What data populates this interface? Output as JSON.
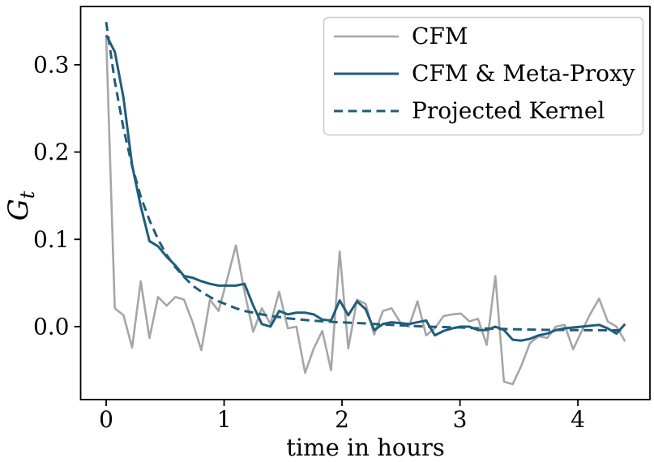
{
  "figure": {
    "background": "#ffffff",
    "spine_color": "#000000",
    "legend_border_color": "#cccccc",
    "legend_background": "#ffffff"
  },
  "chart_data": {
    "type": "line",
    "title": "",
    "xlabel": "time in hours",
    "ylabel": "G_t",
    "ylabel_main": "G",
    "ylabel_sub": "t",
    "xlim": [
      -0.2166,
      4.611
    ],
    "ylim": [
      -0.0836,
      0.3668
    ],
    "xticks": [
      0,
      1,
      2,
      3,
      4
    ],
    "xtick_labels": [
      "0",
      "1",
      "2",
      "3",
      "4"
    ],
    "yticks": [
      0.0,
      0.1,
      0.2,
      0.3
    ],
    "ytick_labels": [
      "0.0",
      "0.1",
      "0.2",
      "0.3"
    ],
    "grid": false,
    "legend_position": "upper right",
    "x": [
      0,
      0.073,
      0.147,
      0.22,
      0.293,
      0.367,
      0.44,
      0.513,
      0.587,
      0.66,
      0.733,
      0.807,
      0.88,
      0.953,
      1.027,
      1.1,
      1.173,
      1.247,
      1.32,
      1.393,
      1.467,
      1.54,
      1.613,
      1.687,
      1.76,
      1.833,
      1.907,
      1.98,
      2.053,
      2.127,
      2.2,
      2.273,
      2.347,
      2.42,
      2.493,
      2.567,
      2.64,
      2.713,
      2.787,
      2.86,
      2.933,
      3.007,
      3.08,
      3.153,
      3.227,
      3.3,
      3.373,
      3.447,
      3.52,
      3.593,
      3.667,
      3.74,
      3.813,
      3.887,
      3.96,
      4.033,
      4.107,
      4.18,
      4.253,
      4.327,
      4.4
    ],
    "series": [
      {
        "name": "CFM",
        "color": "#a6a6a6",
        "style": "solid",
        "width": 2.6,
        "values": [
          0.333,
          0.021,
          0.013,
          -0.024,
          0.052,
          -0.013,
          0.034,
          0.024,
          0.034,
          0.031,
          0.005,
          -0.027,
          0.031,
          0.018,
          0.055,
          0.093,
          0.04,
          -0.006,
          0.021,
          0.003,
          0.04,
          -0.002,
          0.0,
          -0.053,
          -0.025,
          -0.005,
          -0.05,
          0.086,
          -0.025,
          0.031,
          0.026,
          -0.009,
          0.018,
          0.021,
          0.005,
          0.0,
          0.029,
          -0.01,
          -0.002,
          0.012,
          0.014,
          0.015,
          0.006,
          0.009,
          -0.021,
          0.058,
          -0.063,
          -0.066,
          -0.045,
          -0.019,
          -0.011,
          -0.013,
          0.0,
          0.002,
          -0.026,
          -0.005,
          0.015,
          0.032,
          0.006,
          0.0,
          -0.017
        ]
      },
      {
        "name": "CFM & Meta-Proxy",
        "color": "#205d7b",
        "style": "solid",
        "width": 3,
        "values": [
          0.334,
          0.315,
          0.262,
          0.185,
          0.138,
          0.098,
          0.092,
          0.08,
          0.07,
          0.058,
          0.056,
          0.052,
          0.049,
          0.047,
          0.047,
          0.047,
          0.049,
          0.024,
          0.003,
          0.0,
          0.018,
          0.014,
          0.016,
          0.016,
          0.014,
          0.008,
          0.007,
          0.03,
          0.013,
          0.029,
          0.02,
          -0.004,
          0.003,
          0.005,
          0.004,
          0.003,
          0.005,
          0.007,
          -0.01,
          -0.005,
          -0.002,
          0.0,
          0.0,
          -0.004,
          -0.004,
          0.0,
          -0.004,
          -0.015,
          -0.016,
          -0.014,
          -0.01,
          -0.008,
          -0.004,
          -0.002,
          -0.001,
          0.0,
          0.001,
          0.002,
          -0.002,
          -0.008,
          0.003
        ]
      },
      {
        "name": "Projected Kernel",
        "color": "#205d7b",
        "style": "dashed",
        "width": 3,
        "values": [
          0.349,
          0.281,
          0.227,
          0.184,
          0.149,
          0.122,
          0.1,
          0.082,
          0.068,
          0.057,
          0.047,
          0.04,
          0.034,
          0.029,
          0.025,
          0.021,
          0.018,
          0.016,
          0.014,
          0.012,
          0.011,
          0.0095,
          0.0085,
          0.0076,
          0.0068,
          0.0061,
          0.0055,
          0.005,
          0.0045,
          0.0041,
          0.0037,
          0.003,
          0.0025,
          0.002,
          0.0015,
          0.001,
          0.0005,
          0.0,
          -0.0003,
          -0.0005,
          -0.0008,
          -0.001,
          -0.0015,
          -0.002,
          -0.0022,
          -0.0025,
          -0.0027,
          -0.003,
          -0.0032,
          -0.0034,
          -0.0036,
          -0.0037,
          -0.0038,
          -0.0039,
          -0.004,
          -0.004,
          -0.0041,
          -0.0041,
          -0.0042,
          -0.0042,
          -0.0042
        ]
      }
    ]
  }
}
